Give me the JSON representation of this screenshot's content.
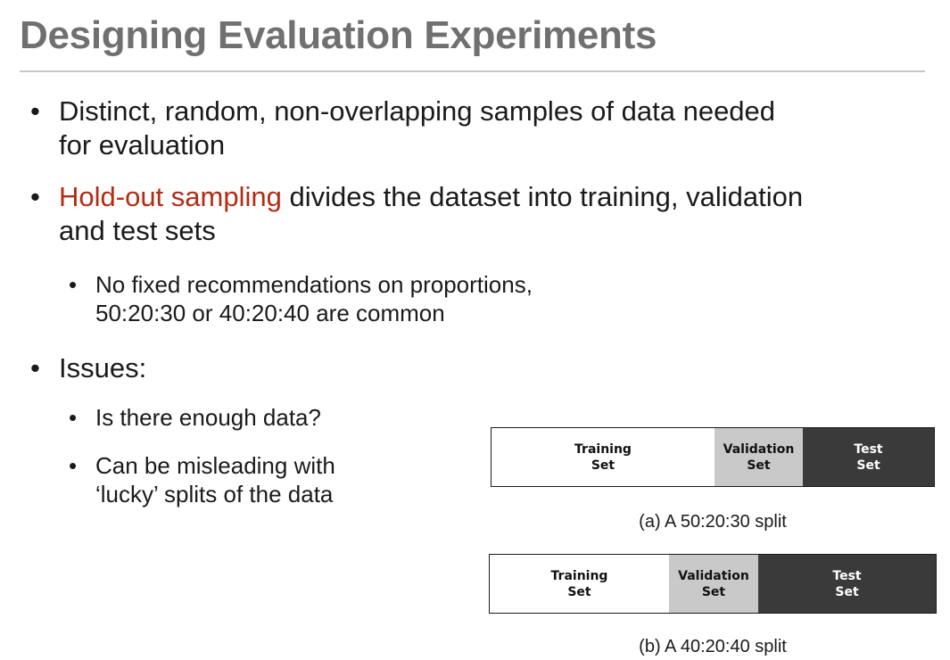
{
  "slide": {
    "title": "Designing Evaluation Experiments"
  },
  "bullets": {
    "b1_line1": "Distinct, random, non-overlapping samples of data needed",
    "b1_line2": "for evaluation",
    "b2_highlight": "Hold-out sampling",
    "b2_rest": " divides the dataset into training, validation",
    "b2_line2": "and test sets",
    "b2_sub1_line1": "No fixed recommendations on proportions,",
    "b2_sub1_line2": "50:20:30 or 40:20:40 are common",
    "b3": "Issues:",
    "b3_sub1": "Is there enough data?",
    "b3_sub2_line1": "Can be misleading with",
    "b3_sub2_line2": "‘lucky’ splits of the data",
    "bullet_symbol": "•"
  },
  "figure": {
    "split_a": {
      "proportions": [
        50,
        20,
        30
      ],
      "training_line1": "Training",
      "training_line2": "Set",
      "validation_line1": "Validation",
      "validation_line2": "Set",
      "test_line1": "Test",
      "test_line2": "Set",
      "caption": "(a)  A 50:20:30 split"
    },
    "split_b": {
      "proportions": [
        40,
        20,
        40
      ],
      "training_line1": "Training",
      "training_line2": "Set",
      "validation_line1": "Validation",
      "validation_line2": "Set",
      "test_line1": "Test",
      "test_line2": "Set",
      "caption": "(b)  A 40:20:40 split"
    }
  },
  "colors": {
    "title": "#707070",
    "accent": "#b52b13",
    "training": "#ffffff",
    "validation": "#c9c9c9",
    "test": "#3a3a3a"
  }
}
